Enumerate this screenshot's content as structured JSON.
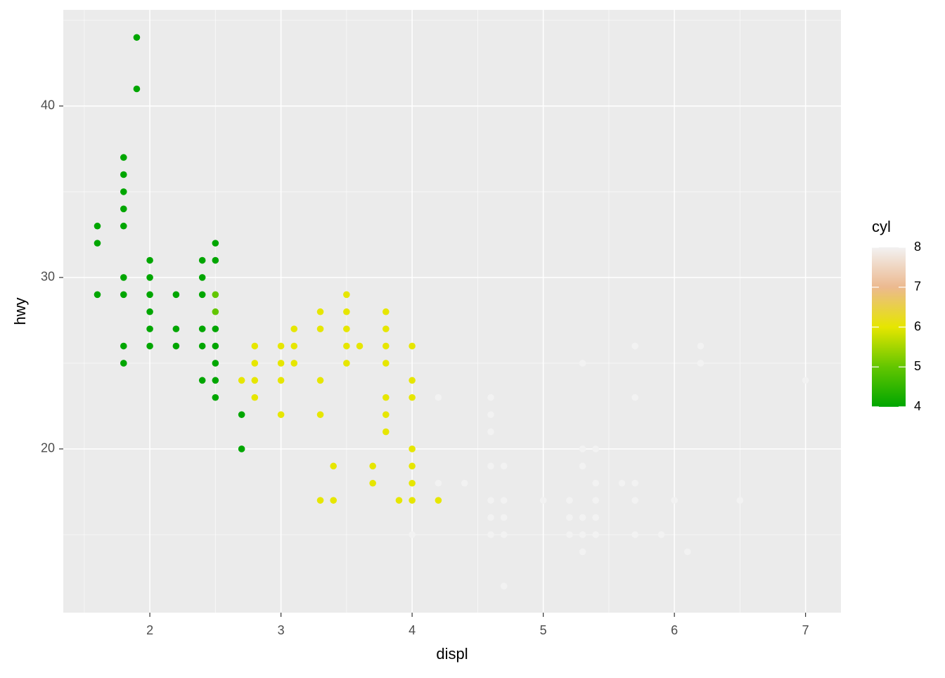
{
  "chart_data": {
    "type": "scatter",
    "x_label": "displ",
    "y_label": "hwy",
    "xlim": [
      1.34,
      7.27
    ],
    "ylim": [
      10.45,
      45.61
    ],
    "xticks": [
      2,
      3,
      4,
      5,
      6,
      7
    ],
    "yticks": [
      20,
      30,
      40
    ],
    "xminor": [
      1.5,
      2.5,
      3.5,
      4.5,
      5.5,
      6.5
    ],
    "yminor": [
      15,
      25,
      35,
      45
    ],
    "grid": true,
    "x": [
      1.6,
      1.6,
      1.6,
      1.8,
      1.8,
      1.8,
      1.8,
      1.8,
      1.8,
      1.8,
      1.8,
      1.8,
      1.9,
      1.9,
      2,
      2,
      2,
      2,
      2,
      2,
      2.2,
      2.2,
      2.2,
      2.4,
      2.4,
      2.4,
      2.4,
      2.4,
      2.4,
      2.5,
      2.5,
      2.5,
      2.5,
      2.5,
      2.5,
      2.5,
      2.5,
      2.5,
      2.7,
      2.7,
      2.7,
      2.8,
      2.8,
      2.8,
      2.8,
      3,
      3,
      3,
      3,
      3.1,
      3.1,
      3.1,
      3.3,
      3.3,
      3.3,
      3.3,
      3.3,
      3.4,
      3.4,
      3.5,
      3.5,
      3.5,
      3.5,
      3.5,
      3.6,
      3.7,
      3.7,
      3.8,
      3.8,
      3.8,
      3.8,
      3.8,
      3.8,
      3.8,
      3.9,
      4,
      4,
      4,
      4,
      4,
      4,
      4,
      4.2,
      4,
      4.2,
      4.2,
      4.4,
      4.6,
      4.6,
      4.6,
      4.6,
      4.6,
      4.6,
      4.6,
      4.7,
      4.7,
      4.7,
      4.7,
      4.7,
      5,
      5.2,
      5.2,
      5.2,
      5.3,
      5.3,
      5.3,
      5.3,
      5.3,
      5.3,
      5.4,
      5.4,
      5.4,
      5.4,
      5.4,
      5.6,
      5.7,
      5.7,
      5.7,
      5.7,
      5.7,
      5.9,
      6,
      6.1,
      6.2,
      6.2,
      6.5,
      7
    ],
    "y": [
      33,
      32,
      29,
      37,
      36,
      35,
      34,
      33,
      30,
      29,
      26,
      25,
      44,
      41,
      31,
      30,
      29,
      28,
      27,
      26,
      29,
      27,
      26,
      31,
      30,
      29,
      27,
      26,
      24,
      32,
      31,
      27,
      26,
      25,
      24,
      23,
      29,
      28,
      22,
      20,
      24,
      26,
      25,
      24,
      23,
      26,
      25,
      24,
      22,
      27,
      26,
      25,
      28,
      27,
      24,
      22,
      17,
      19,
      17,
      29,
      28,
      27,
      26,
      25,
      26,
      19,
      18,
      28,
      27,
      26,
      25,
      23,
      22,
      21,
      17,
      26,
      24,
      23,
      20,
      19,
      18,
      17,
      17,
      15,
      23,
      18,
      18,
      23,
      22,
      21,
      19,
      17,
      16,
      15,
      19,
      17,
      16,
      15,
      12,
      17,
      17,
      16,
      15,
      25,
      20,
      19,
      16,
      15,
      14,
      20,
      18,
      17,
      16,
      15,
      18,
      26,
      23,
      18,
      17,
      15,
      15,
      17,
      14,
      26,
      25,
      17,
      24
    ],
    "color_values": [
      4,
      4,
      4,
      4,
      4,
      4,
      4,
      4,
      4,
      4,
      4,
      4,
      4,
      4,
      4,
      4,
      4,
      4,
      4,
      4,
      4,
      4,
      4,
      4,
      4,
      4,
      4,
      4,
      4,
      4,
      4,
      4,
      4,
      4,
      4,
      4,
      5,
      5,
      4,
      4,
      6,
      6,
      6,
      6,
      6,
      6,
      6,
      6,
      6,
      6,
      6,
      6,
      6,
      6,
      6,
      6,
      6,
      6,
      6,
      6,
      6,
      6,
      6,
      6,
      6,
      6,
      6,
      6,
      6,
      6,
      6,
      6,
      6,
      6,
      6,
      6,
      6,
      6,
      6,
      6,
      6,
      6,
      6,
      8,
      8,
      8,
      8,
      8,
      8,
      8,
      8,
      8,
      8,
      8,
      8,
      8,
      8,
      8,
      8,
      8,
      8,
      8,
      8,
      8,
      8,
      8,
      8,
      8,
      8,
      8,
      8,
      8,
      8,
      8,
      8,
      8,
      8,
      8,
      8,
      8,
      8,
      8,
      8,
      8,
      8,
      8,
      8
    ],
    "colorbar": {
      "title": "cyl",
      "lim": [
        4,
        8
      ],
      "ticks": [
        4,
        5,
        6,
        7,
        8
      ],
      "colors": [
        "#00A600",
        "#63C600",
        "#E6E600",
        "#ECB98F",
        "#F2F2F2"
      ]
    }
  }
}
